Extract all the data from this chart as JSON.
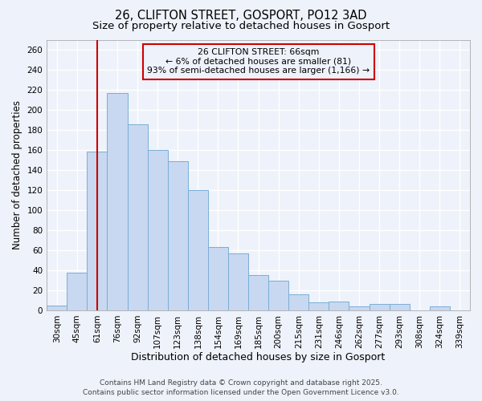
{
  "title_line1": "26, CLIFTON STREET, GOSPORT, PO12 3AD",
  "title_line2": "Size of property relative to detached houses in Gosport",
  "xlabel": "Distribution of detached houses by size in Gosport",
  "ylabel": "Number of detached properties",
  "categories": [
    "30sqm",
    "45sqm",
    "61sqm",
    "76sqm",
    "92sqm",
    "107sqm",
    "123sqm",
    "138sqm",
    "154sqm",
    "169sqm",
    "185sqm",
    "200sqm",
    "215sqm",
    "231sqm",
    "246sqm",
    "262sqm",
    "277sqm",
    "293sqm",
    "308sqm",
    "324sqm",
    "339sqm"
  ],
  "values": [
    5,
    38,
    159,
    217,
    186,
    160,
    149,
    120,
    63,
    57,
    35,
    30,
    16,
    8,
    9,
    4,
    6,
    6,
    0,
    4,
    0
  ],
  "bar_color": "#c8d8f0",
  "bar_edge_color": "#7aaed6",
  "background_color": "#eef2fa",
  "grid_color": "#ffffff",
  "vline_x": 2.0,
  "vline_color": "#cc0000",
  "annotation_title": "26 CLIFTON STREET: 66sqm",
  "annotation_line1": "← 6% of detached houses are smaller (81)",
  "annotation_line2": "93% of semi-detached houses are larger (1,166) →",
  "annotation_box_color": "#cc0000",
  "ylim": [
    0,
    270
  ],
  "yticks": [
    0,
    20,
    40,
    60,
    80,
    100,
    120,
    140,
    160,
    180,
    200,
    220,
    240,
    260
  ],
  "footer_line1": "Contains HM Land Registry data © Crown copyright and database right 2025.",
  "footer_line2": "Contains public sector information licensed under the Open Government Licence v3.0.",
  "title_fontsize": 10.5,
  "subtitle_fontsize": 9.5,
  "axis_label_fontsize": 8.5,
  "tick_fontsize": 7.5,
  "annotation_fontsize": 7.8,
  "footer_fontsize": 6.5
}
